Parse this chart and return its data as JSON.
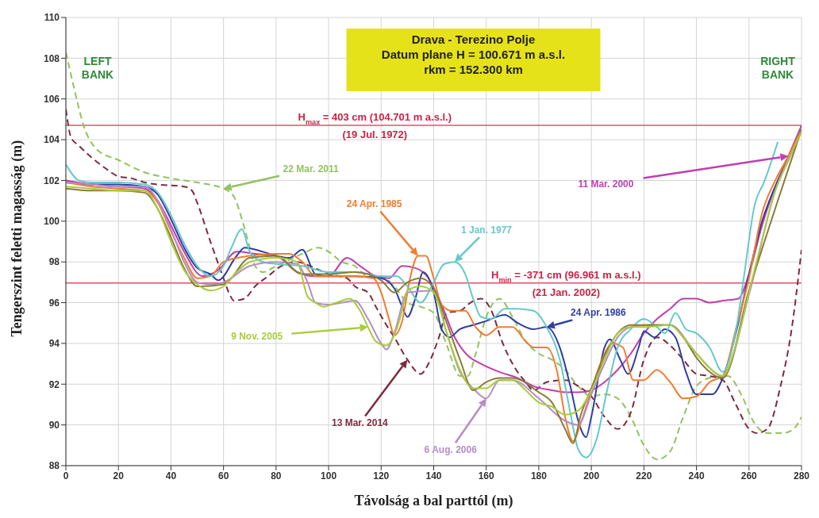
{
  "chart_data": {
    "type": "line",
    "title": "Drava - Terezino Polje",
    "subtitle": "Datum plane  H = 100.671 m a.s.l.\nrkm = 152.300 km",
    "xlabel": "Távolság a bal parttól (m)",
    "ylabel": "Tengerszint feletti magasság (m)",
    "xlim": [
      0,
      280
    ],
    "xticks": [
      0,
      20,
      40,
      60,
      80,
      100,
      120,
      140,
      160,
      180,
      200,
      220,
      240,
      260,
      280
    ],
    "ylim": [
      88,
      110
    ],
    "yticks": [
      88,
      90,
      92,
      94,
      96,
      98,
      100,
      102,
      104,
      106,
      108,
      110
    ],
    "grid": true,
    "marker": "none",
    "annotations": [
      "LEFT\nBANK",
      "RIGHT\nBANK"
    ],
    "ref_lines": [
      {
        "axis": "y",
        "value": 104.701,
        "label": "H$_{max}$ = 403 cm (104.701 m a.s.l.)\n(19 Jul. 1972)",
        "color": "#e0506a"
      },
      {
        "axis": "y",
        "value": 96.961,
        "label": "H$_{min}$ = -371 cm  (96.961 m a.s.l.)\n(21 Jan. 2002)",
        "color": "#e0506a"
      }
    ],
    "series": [
      {
        "name": "22 Mar. 2011",
        "color": "#93c25e",
        "line_style": "dashed",
        "x": [
          0,
          3,
          7,
          12,
          20,
          30,
          40,
          50,
          60,
          64,
          67,
          70,
          72,
          75,
          80,
          85,
          90,
          96,
          100,
          105,
          110,
          115,
          120,
          125,
          130,
          135,
          140,
          145,
          150,
          153,
          156,
          160,
          165,
          170,
          175,
          180,
          185,
          190,
          195,
          200,
          205,
          210,
          215,
          220,
          225,
          230,
          235,
          240,
          245,
          252,
          257,
          262,
          267,
          273,
          277,
          280
        ],
        "values": [
          108.3,
          106.6,
          104.6,
          103.5,
          103.0,
          102.4,
          102.1,
          101.9,
          101.6,
          101.2,
          100.1,
          98.7,
          97.8,
          97.5,
          97.8,
          98.1,
          98.4,
          98.7,
          98.5,
          98.0,
          97.8,
          97.3,
          97.3,
          96.8,
          96.0,
          95.8,
          95.5,
          93.9,
          92.4,
          92.4,
          93.5,
          95.3,
          96.2,
          95.3,
          94.1,
          93.5,
          93.2,
          92.7,
          91.9,
          91.4,
          91.5,
          91.3,
          90.4,
          89.0,
          88.3,
          88.7,
          90.4,
          91.9,
          92.3,
          92.4,
          91.5,
          90.1,
          89.6,
          89.6,
          89.8,
          90.4
        ]
      },
      {
        "name": "13 Mar. 2014",
        "color": "#7b2d3f",
        "line_style": "dashed",
        "x": [
          0,
          2,
          5,
          10,
          15,
          20,
          25,
          30,
          35,
          45,
          48,
          50,
          55,
          60,
          62,
          64,
          68,
          72,
          77,
          82,
          88,
          93,
          100,
          107,
          110,
          115,
          118,
          122,
          125,
          130,
          135,
          138,
          142,
          145,
          150,
          154,
          158,
          162,
          166,
          170,
          175,
          178,
          183,
          190,
          195,
          200,
          205,
          210,
          215,
          220,
          225,
          230,
          235,
          240,
          245,
          250,
          255,
          260,
          263,
          267,
          272,
          276,
          280
        ],
        "values": [
          105.5,
          104.1,
          103.7,
          103.1,
          102.6,
          102.2,
          102.1,
          101.9,
          101.8,
          101.7,
          101.5,
          100.9,
          99.0,
          97.2,
          96.5,
          96.1,
          96.2,
          96.8,
          97.3,
          97.8,
          98.0,
          97.8,
          97.4,
          97.2,
          96.8,
          96.5,
          95.8,
          94.9,
          94.3,
          93.2,
          92.5,
          93.0,
          94.3,
          95.5,
          95.6,
          96.0,
          96.2,
          95.6,
          94.1,
          93.0,
          92.1,
          91.7,
          92.1,
          92.2,
          91.9,
          91.4,
          90.4,
          89.8,
          90.6,
          93.2,
          94.3,
          93.9,
          93.2,
          92.5,
          92.4,
          92.2,
          91.0,
          89.8,
          89.6,
          89.8,
          91.9,
          94.5,
          98.6
        ]
      },
      {
        "name": "11 Mar. 2000",
        "color": "#c03fae",
        "x": [
          0,
          10,
          20,
          30,
          35,
          40,
          45,
          52,
          58,
          65,
          72,
          80,
          88,
          95,
          100,
          107,
          112,
          118,
          123,
          128,
          133,
          138,
          143,
          148,
          153,
          158,
          165,
          172,
          178,
          185,
          190,
          195,
          200,
          205,
          210,
          215,
          220,
          225,
          230,
          235,
          240,
          245,
          250,
          256,
          260,
          265,
          270,
          275,
          280
        ],
        "values": [
          102.0,
          101.8,
          101.7,
          101.6,
          101.0,
          99.8,
          98.5,
          97.3,
          97.6,
          98.5,
          98.4,
          98.3,
          97.5,
          97.3,
          97.3,
          98.2,
          97.8,
          97.3,
          97.2,
          97.8,
          97.7,
          97.2,
          95.9,
          94.3,
          93.4,
          93.0,
          92.6,
          92.3,
          91.9,
          91.7,
          91.6,
          91.6,
          91.7,
          92.1,
          92.7,
          93.5,
          94.5,
          95.2,
          95.7,
          96.2,
          96.2,
          96.0,
          96.1,
          96.2,
          97.4,
          99.8,
          101.7,
          103.2,
          104.7
        ]
      },
      {
        "name": "24 Apr. 1986",
        "color": "#2f3fa0",
        "x": [
          0,
          10,
          20,
          30,
          35,
          40,
          45,
          50,
          55,
          58,
          65,
          68,
          75,
          80,
          85,
          90,
          95,
          100,
          110,
          120,
          125,
          128,
          130,
          133,
          136,
          140,
          143,
          146,
          150,
          155,
          160,
          167,
          172,
          178,
          183,
          188,
          192,
          195,
          198,
          200,
          205,
          207,
          211,
          214,
          218,
          220,
          224,
          228,
          232,
          236,
          240,
          246,
          250,
          255,
          260,
          265,
          270,
          275,
          280
        ],
        "values": [
          101.9,
          101.8,
          101.8,
          101.7,
          101.3,
          100.1,
          98.7,
          97.7,
          97.4,
          97.1,
          98.3,
          98.7,
          98.5,
          98.3,
          98.2,
          98.6,
          97.4,
          97.3,
          97.3,
          97.2,
          96.7,
          95.8,
          95.3,
          96.2,
          97.5,
          96.5,
          94.7,
          94.3,
          94.7,
          94.9,
          95.1,
          95.4,
          95.0,
          94.7,
          94.8,
          93.8,
          91.9,
          90.2,
          89.4,
          90.4,
          93.8,
          94.2,
          93.2,
          92.5,
          93.8,
          94.6,
          94.3,
          94.7,
          94.3,
          92.6,
          91.5,
          91.5,
          92.3,
          94.5,
          97.4,
          100.0,
          101.7,
          103.0,
          104.5
        ]
      },
      {
        "name": "24 Apr. 1985",
        "color": "#f07c30",
        "x": [
          0,
          10,
          20,
          30,
          35,
          40,
          45,
          50,
          55,
          60,
          70,
          80,
          85,
          90,
          95,
          100,
          110,
          117,
          120,
          123,
          125,
          128,
          131,
          134,
          137,
          140,
          143,
          147,
          152,
          156,
          160,
          165,
          170,
          175,
          178,
          183,
          187,
          190,
          193,
          196,
          200,
          204,
          208,
          212,
          216,
          220,
          225,
          230,
          235,
          240,
          245,
          250,
          255,
          260,
          265,
          270,
          275,
          280
        ],
        "values": [
          101.9,
          101.7,
          101.6,
          101.5,
          100.9,
          99.5,
          98.2,
          97.2,
          97.3,
          98.0,
          98.3,
          98.4,
          98.4,
          98.0,
          97.3,
          97.3,
          97.3,
          97.2,
          96.5,
          95.2,
          94.4,
          95.1,
          97.2,
          98.3,
          98.3,
          97.2,
          95.9,
          95.6,
          95.6,
          94.8,
          94.4,
          94.8,
          94.8,
          94.1,
          93.8,
          93.8,
          92.6,
          90.4,
          89.2,
          90.1,
          91.7,
          93.2,
          94.0,
          93.8,
          92.2,
          92.2,
          92.7,
          92.1,
          91.3,
          91.4,
          92.1,
          92.4,
          94.7,
          97.2,
          100.4,
          102.0,
          103.2,
          104.5
        ]
      },
      {
        "name": "1 Jan. 1977",
        "color": "#66c8cc",
        "x": [
          0,
          5,
          10,
          20,
          30,
          35,
          40,
          45,
          50,
          55,
          60,
          63,
          67,
          70,
          75,
          80,
          90,
          100,
          110,
          120,
          126,
          130,
          135,
          140,
          144,
          148,
          152,
          155,
          158,
          162,
          167,
          172,
          178,
          183,
          188,
          192,
          195,
          198,
          202,
          206,
          210,
          215,
          220,
          225,
          228,
          232,
          236,
          240,
          245,
          250,
          255,
          258,
          262,
          266,
          271
        ],
        "values": [
          102.8,
          102.0,
          101.9,
          101.9,
          101.8,
          101.4,
          100.3,
          98.9,
          97.8,
          97.3,
          97.8,
          98.7,
          99.6,
          98.5,
          98.0,
          97.9,
          97.8,
          97.5,
          97.5,
          97.3,
          97.3,
          96.8,
          96.0,
          97.0,
          97.9,
          98.0,
          97.4,
          96.2,
          95.3,
          95.2,
          95.7,
          95.7,
          95.6,
          94.8,
          93.2,
          90.6,
          88.8,
          88.4,
          89.3,
          91.7,
          93.8,
          94.7,
          95.2,
          94.8,
          94.5,
          95.5,
          94.7,
          94.5,
          93.8,
          92.6,
          94.6,
          97.2,
          100.7,
          102.0,
          103.9
        ]
      },
      {
        "name": "6 Aug. 2006",
        "color": "#b58cc8",
        "x": [
          0,
          10,
          20,
          30,
          35,
          40,
          45,
          50,
          55,
          60,
          70,
          80,
          88,
          92,
          95,
          100,
          105,
          110,
          115,
          120,
          122,
          125,
          130,
          140,
          145,
          150,
          155,
          160,
          165,
          170,
          180,
          190,
          195,
          200,
          205,
          210,
          215,
          220,
          230,
          240,
          250,
          260,
          270,
          275,
          280
        ],
        "values": [
          101.9,
          101.8,
          101.7,
          101.7,
          101.0,
          99.6,
          98.0,
          97.0,
          96.9,
          97.0,
          97.8,
          98.0,
          97.9,
          97.0,
          96.0,
          95.9,
          96.0,
          96.1,
          95.2,
          94.0,
          93.7,
          94.5,
          96.5,
          96.6,
          94.5,
          92.6,
          91.8,
          91.3,
          92.2,
          92.2,
          91.3,
          90.2,
          90.0,
          91.5,
          93.0,
          94.3,
          94.8,
          94.9,
          94.9,
          93.5,
          92.4,
          96.4,
          101.5,
          103.0,
          104.4
        ]
      },
      {
        "color": "#8b7c3a",
        "x": [
          0,
          10,
          20,
          30,
          35,
          40,
          45,
          50,
          60,
          70,
          80,
          90,
          100,
          110,
          120,
          125,
          130,
          135,
          140,
          145,
          150,
          155,
          160,
          165,
          170,
          180,
          185,
          190,
          193,
          196,
          200,
          205,
          210,
          215,
          220,
          230,
          235,
          240,
          250,
          260,
          280
        ],
        "values": [
          101.6,
          101.5,
          101.5,
          101.4,
          100.6,
          99.2,
          97.7,
          96.8,
          96.9,
          98.2,
          98.3,
          97.4,
          97.4,
          97.5,
          97.1,
          96.5,
          97.0,
          97.2,
          96.7,
          95.0,
          93.2,
          91.7,
          92.1,
          92.3,
          92.3,
          91.6,
          91.1,
          89.8,
          89.1,
          90.5,
          91.8,
          93.4,
          94.5,
          94.9,
          94.9,
          94.9,
          94.3,
          93.3,
          92.3,
          96.6,
          104.5
        ]
      },
      {
        "name": "9 Nov. 2005",
        "color": "#a8cc3c",
        "x": [
          0,
          10,
          20,
          30,
          35,
          40,
          45,
          50,
          55,
          60,
          65,
          70,
          80,
          88,
          92,
          95,
          98,
          103,
          108,
          112,
          115,
          118,
          122,
          125,
          128,
          130,
          135,
          140,
          145,
          150,
          155,
          160,
          165,
          170,
          175,
          180,
          185,
          190,
          195,
          200,
          205,
          210,
          215,
          220,
          230,
          235,
          240,
          245,
          250,
          255,
          260,
          265,
          270,
          275,
          280
        ],
        "values": [
          101.7,
          101.6,
          101.5,
          101.5,
          100.6,
          99.0,
          97.6,
          96.9,
          96.6,
          96.8,
          97.5,
          98.0,
          98.2,
          98.0,
          96.3,
          96.0,
          95.8,
          96.0,
          96.2,
          95.6,
          94.8,
          94.1,
          93.9,
          94.4,
          95.6,
          96.6,
          96.8,
          96.5,
          94.5,
          92.7,
          91.8,
          91.8,
          92.2,
          92.2,
          91.7,
          91.1,
          90.9,
          90.5,
          90.7,
          91.7,
          93.2,
          94.5,
          94.8,
          94.8,
          94.9,
          94.3,
          93.5,
          92.8,
          92.4,
          93.9,
          96.5,
          99.1,
          101.5,
          103.0,
          104.4
        ]
      }
    ]
  }
}
